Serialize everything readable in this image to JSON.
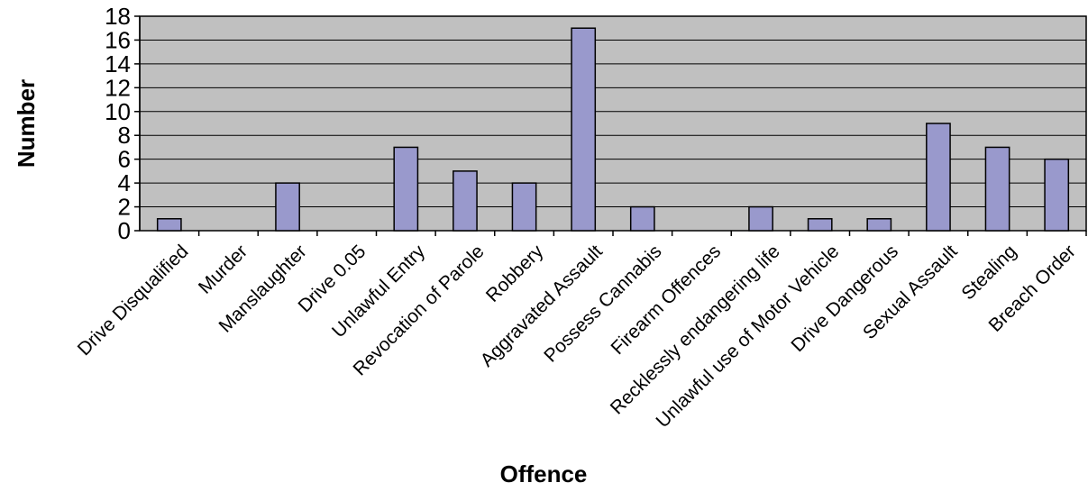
{
  "chart_data": {
    "type": "bar",
    "title": "",
    "xlabel": "Offence",
    "ylabel": "Number",
    "ylim": [
      0,
      18
    ],
    "ytick_step": 2,
    "grid": true,
    "plot_background": "#C0C0C0",
    "bar_color": "#9999CC",
    "categories": [
      "Drive Disqualified",
      "Murder",
      "Manslaughter",
      "Drive 0.05",
      "Unlawful Entry",
      "Revocation of Parole",
      "Robbery",
      "Aggravated Assault",
      "Possess Cannabis",
      "Firearm Offences",
      "Recklessly endangering life",
      "Unlawful use of Motor Vehicle",
      "Drive Dangerous",
      "Sexual Assault",
      "Stealing",
      "Breach Order"
    ],
    "values": [
      1,
      0,
      4,
      0,
      7,
      5,
      4,
      17,
      2,
      0,
      2,
      1,
      1,
      9,
      7,
      6
    ]
  }
}
